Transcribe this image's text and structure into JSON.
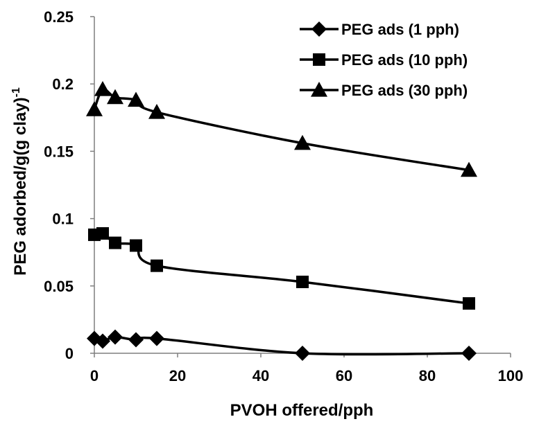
{
  "chart_data": {
    "type": "line",
    "title": "",
    "xlabel": "PVOH offered/pph",
    "ylabel": "PEG adorbed/g(g clay)",
    "ylabel_superscript": "-1",
    "xlim": [
      0,
      100
    ],
    "ylim": [
      0,
      0.25
    ],
    "x_ticks": [
      0,
      20,
      40,
      60,
      80,
      100
    ],
    "y_ticks": [
      0,
      0.05,
      0.1,
      0.15,
      0.2,
      0.25
    ],
    "x_tick_labels": [
      "0",
      "20",
      "40",
      "60",
      "80",
      "100"
    ],
    "y_tick_labels": [
      "0",
      "0.05",
      "0.1",
      "0.15",
      "0.2",
      "0.25"
    ],
    "grid": false,
    "legend_position": "top-right",
    "series": [
      {
        "name": "PEG ads (1 pph)",
        "marker": "diamond",
        "x": [
          0,
          2,
          5,
          10,
          15,
          50,
          90
        ],
        "y": [
          0.011,
          0.009,
          0.012,
          0.01,
          0.011,
          0.0,
          0.0
        ]
      },
      {
        "name": "PEG ads (10 pph)",
        "marker": "square",
        "x": [
          0,
          2,
          5,
          10,
          15,
          50,
          90
        ],
        "y": [
          0.088,
          0.089,
          0.082,
          0.08,
          0.065,
          0.053,
          0.037
        ]
      },
      {
        "name": "PEG ads (30 pph)",
        "marker": "triangle",
        "x": [
          0,
          2,
          5,
          10,
          15,
          50,
          90
        ],
        "y": [
          0.181,
          0.196,
          0.19,
          0.188,
          0.179,
          0.156,
          0.136
        ]
      }
    ],
    "colors": {
      "line": "#000000",
      "marker": "#000000",
      "axis": "#7f7f7f"
    }
  }
}
